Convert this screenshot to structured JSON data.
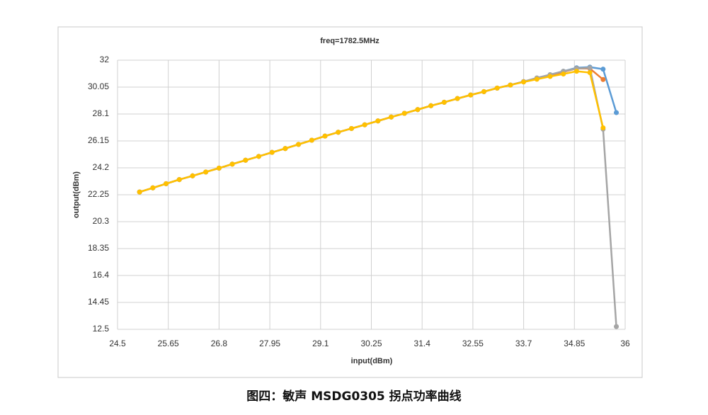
{
  "chart_data": {
    "type": "line",
    "title": "freq=1782.5MHz",
    "x_label": "input(dBm)",
    "y_label": "output(dBm)",
    "caption": "图四：敏声 MSDG0305 拐点功率曲线",
    "x": [
      25.0,
      25.3,
      25.6,
      25.9,
      26.2,
      26.5,
      26.8,
      27.1,
      27.4,
      27.7,
      28.0,
      28.3,
      28.6,
      28.9,
      29.2,
      29.5,
      29.8,
      30.1,
      30.4,
      30.7,
      31.0,
      31.3,
      31.6,
      31.9,
      32.2,
      32.5,
      32.8,
      33.1,
      33.4,
      33.7,
      34.0,
      34.3,
      34.6,
      34.9,
      35.2,
      35.5,
      35.8
    ],
    "series": [
      {
        "color": "#5b9bd5",
        "values": [
          22.45,
          22.75,
          23.05,
          23.35,
          23.62,
          23.9,
          24.18,
          24.47,
          24.75,
          25.03,
          25.32,
          25.6,
          25.9,
          26.2,
          26.5,
          26.78,
          27.05,
          27.32,
          27.6,
          27.88,
          28.15,
          28.42,
          28.7,
          28.95,
          29.22,
          29.48,
          29.72,
          29.98,
          30.2,
          30.45,
          30.7,
          30.95,
          31.2,
          31.45,
          31.5,
          31.35,
          28.2
        ]
      },
      {
        "color": "#ed7d31",
        "values": [
          22.45,
          22.75,
          23.05,
          23.35,
          23.62,
          23.9,
          24.18,
          24.47,
          24.75,
          25.03,
          25.32,
          25.6,
          25.9,
          26.2,
          26.5,
          26.78,
          27.05,
          27.32,
          27.6,
          27.88,
          28.15,
          28.42,
          28.7,
          28.95,
          29.22,
          29.48,
          29.72,
          29.98,
          30.2,
          30.45,
          30.68,
          30.9,
          31.15,
          31.4,
          31.4,
          30.6,
          null
        ]
      },
      {
        "color": "#a5a5a5",
        "values": [
          22.45,
          22.75,
          23.05,
          23.35,
          23.62,
          23.9,
          24.18,
          24.47,
          24.75,
          25.03,
          25.32,
          25.6,
          25.9,
          26.2,
          26.5,
          26.78,
          27.05,
          27.32,
          27.6,
          27.88,
          28.15,
          28.42,
          28.7,
          28.95,
          29.22,
          29.48,
          29.72,
          29.98,
          30.2,
          30.45,
          30.72,
          30.95,
          31.2,
          31.4,
          31.45,
          27.0,
          12.7
        ]
      },
      {
        "color": "#ffc000",
        "values": [
          22.45,
          22.75,
          23.05,
          23.35,
          23.62,
          23.9,
          24.18,
          24.47,
          24.75,
          25.03,
          25.32,
          25.6,
          25.9,
          26.2,
          26.5,
          26.78,
          27.05,
          27.32,
          27.6,
          27.88,
          28.15,
          28.42,
          28.7,
          28.95,
          29.22,
          29.48,
          29.72,
          29.98,
          30.2,
          30.42,
          30.62,
          30.82,
          31.0,
          31.2,
          31.1,
          27.1,
          null
        ]
      }
    ],
    "xlim": [
      24.5,
      36
    ],
    "xticks": [
      24.5,
      25.65,
      26.8,
      27.95,
      29.1,
      30.25,
      31.4,
      32.55,
      33.7,
      34.85,
      36
    ],
    "ylim": [
      12.5,
      32
    ],
    "yticks": [
      12.5,
      14.45,
      16.4,
      18.35,
      20.3,
      22.25,
      24.2,
      26.15,
      28.1,
      30.05,
      32
    ],
    "grid": true
  }
}
